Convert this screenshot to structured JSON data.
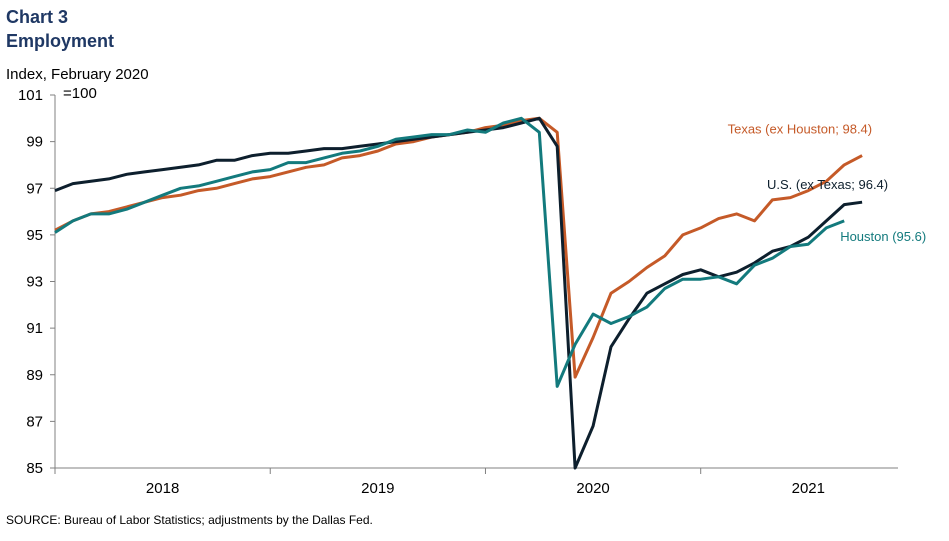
{
  "title_line1": "Chart 3",
  "title_line2": "Employment",
  "y_unit_line1": "Index, February 2020",
  "y_unit_line2": "=100",
  "source": "SOURCE: Bureau of Labor Statistics; adjustments by the Dallas Fed.",
  "chart_data": {
    "type": "line",
    "ylim": [
      85,
      101
    ],
    "yticks": [
      85,
      87,
      89,
      91,
      93,
      95,
      97,
      99,
      101
    ],
    "x_start": "2017-07",
    "x_end": "2021-06",
    "year_labels": [
      "2018",
      "2019",
      "2020",
      "2021"
    ],
    "grid": false,
    "series": [
      {
        "name": "Texas (ex Houston; 98.4)",
        "color": "#c55a28",
        "x": [
          "2017-07",
          "2017-08",
          "2017-09",
          "2017-10",
          "2017-11",
          "2017-12",
          "2018-01",
          "2018-02",
          "2018-03",
          "2018-04",
          "2018-05",
          "2018-06",
          "2018-07",
          "2018-08",
          "2018-09",
          "2018-10",
          "2018-11",
          "2018-12",
          "2019-01",
          "2019-02",
          "2019-03",
          "2019-04",
          "2019-05",
          "2019-06",
          "2019-07",
          "2019-08",
          "2019-09",
          "2019-10",
          "2019-11",
          "2019-12",
          "2020-01",
          "2020-02",
          "2020-03",
          "2020-04",
          "2020-05",
          "2020-06",
          "2020-07",
          "2020-08",
          "2020-09",
          "2020-10",
          "2020-11",
          "2020-12",
          "2021-01",
          "2021-02",
          "2021-03",
          "2021-04",
          "2021-05"
        ],
        "values": [
          95.2,
          95.6,
          95.9,
          96.0,
          96.2,
          96.4,
          96.6,
          96.7,
          96.9,
          97.0,
          97.2,
          97.4,
          97.5,
          97.7,
          97.9,
          98.0,
          98.3,
          98.4,
          98.6,
          98.9,
          99.0,
          99.2,
          99.3,
          99.4,
          99.6,
          99.7,
          99.9,
          100.0,
          99.4,
          88.9,
          90.6,
          92.5,
          93.0,
          93.6,
          94.1,
          95.0,
          95.3,
          95.7,
          95.9,
          95.6,
          96.5,
          96.6,
          96.9,
          97.3,
          98.0,
          98.4,
          null
        ],
        "label": "Texas (ex Houston; 98.4)"
      },
      {
        "name": "U.S. (ex Texas; 96.4)",
        "color": "#0d1f2d",
        "x": [
          "2017-07",
          "2017-08",
          "2017-09",
          "2017-10",
          "2017-11",
          "2017-12",
          "2018-01",
          "2018-02",
          "2018-03",
          "2018-04",
          "2018-05",
          "2018-06",
          "2018-07",
          "2018-08",
          "2018-09",
          "2018-10",
          "2018-11",
          "2018-12",
          "2019-01",
          "2019-02",
          "2019-03",
          "2019-04",
          "2019-05",
          "2019-06",
          "2019-07",
          "2019-08",
          "2019-09",
          "2019-10",
          "2019-11",
          "2019-12",
          "2020-01",
          "2020-02",
          "2020-03",
          "2020-04",
          "2020-05",
          "2020-06",
          "2020-07",
          "2020-08",
          "2020-09",
          "2020-10",
          "2020-11",
          "2020-12",
          "2021-01",
          "2021-02",
          "2021-03",
          "2021-04",
          "2021-05"
        ],
        "values": [
          96.9,
          97.2,
          97.3,
          97.4,
          97.6,
          97.7,
          97.8,
          97.9,
          98.0,
          98.2,
          98.2,
          98.4,
          98.5,
          98.5,
          98.6,
          98.7,
          98.7,
          98.8,
          98.9,
          99.0,
          99.1,
          99.2,
          99.3,
          99.4,
          99.5,
          99.6,
          99.8,
          100.0,
          98.8,
          85.0,
          86.8,
          90.2,
          91.4,
          92.5,
          92.9,
          93.3,
          93.5,
          93.2,
          93.4,
          93.8,
          94.3,
          94.5,
          94.9,
          95.6,
          96.3,
          96.4,
          null
        ],
        "label": "U.S. (ex Texas; 96.4)"
      },
      {
        "name": "Houston (95.6)",
        "color": "#137a7d",
        "x": [
          "2017-07",
          "2017-08",
          "2017-09",
          "2017-10",
          "2017-11",
          "2017-12",
          "2018-01",
          "2018-02",
          "2018-03",
          "2018-04",
          "2018-05",
          "2018-06",
          "2018-07",
          "2018-08",
          "2018-09",
          "2018-10",
          "2018-11",
          "2018-12",
          "2019-01",
          "2019-02",
          "2019-03",
          "2019-04",
          "2019-05",
          "2019-06",
          "2019-07",
          "2019-08",
          "2019-09",
          "2019-10",
          "2019-11",
          "2019-12",
          "2020-01",
          "2020-02",
          "2020-03",
          "2020-04",
          "2020-05",
          "2020-06",
          "2020-07",
          "2020-08",
          "2020-09",
          "2020-10",
          "2020-11",
          "2020-12",
          "2021-01",
          "2021-02",
          "2021-03",
          "2021-04",
          "2021-05"
        ],
        "values": [
          95.1,
          95.6,
          95.9,
          95.9,
          96.1,
          96.4,
          96.7,
          97.0,
          97.1,
          97.3,
          97.5,
          97.7,
          97.8,
          98.1,
          98.1,
          98.3,
          98.5,
          98.6,
          98.8,
          99.1,
          99.2,
          99.3,
          99.3,
          99.5,
          99.4,
          99.8,
          100.0,
          99.4,
          88.5,
          90.3,
          91.6,
          91.2,
          91.5,
          91.9,
          92.7,
          93.1,
          93.1,
          93.2,
          92.9,
          93.7,
          94.0,
          94.5,
          94.6,
          95.3,
          95.6,
          null,
          null
        ],
        "label": "Houston (95.6)"
      }
    ]
  }
}
